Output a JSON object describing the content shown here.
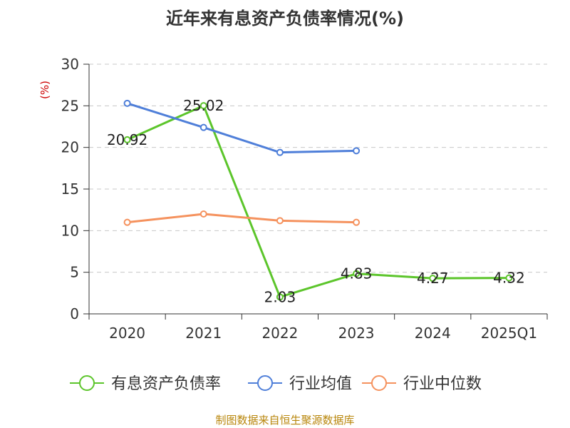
{
  "chart_data": {
    "type": "line",
    "title": "近年来有息资产负债率情况(%)",
    "ylabel": "(%)",
    "xlabel": "",
    "categories": [
      "2020",
      "2021",
      "2022",
      "2023",
      "2024",
      "2025Q1"
    ],
    "ylim": [
      0,
      30
    ],
    "yticks": [
      0,
      5,
      10,
      15,
      20,
      25,
      30
    ],
    "grid": true,
    "legend_position": "bottom",
    "series": [
      {
        "name": "有息资产负债率",
        "color": "#5cc52b",
        "values": [
          20.92,
          25.02,
          2.03,
          4.83,
          4.27,
          4.32
        ],
        "labels": [
          "20.92",
          "25.02",
          "2.03",
          "4.83",
          "4.27",
          "4.32"
        ]
      },
      {
        "name": "行业均值",
        "color": "#4f7fd9",
        "values": [
          25.3,
          22.4,
          19.4,
          19.6,
          null,
          null
        ]
      },
      {
        "name": "行业中位数",
        "color": "#f5925e",
        "values": [
          11.0,
          12.0,
          11.2,
          11.0,
          null,
          null
        ]
      }
    ],
    "source": "制图数据来自恒生聚源数据库"
  }
}
